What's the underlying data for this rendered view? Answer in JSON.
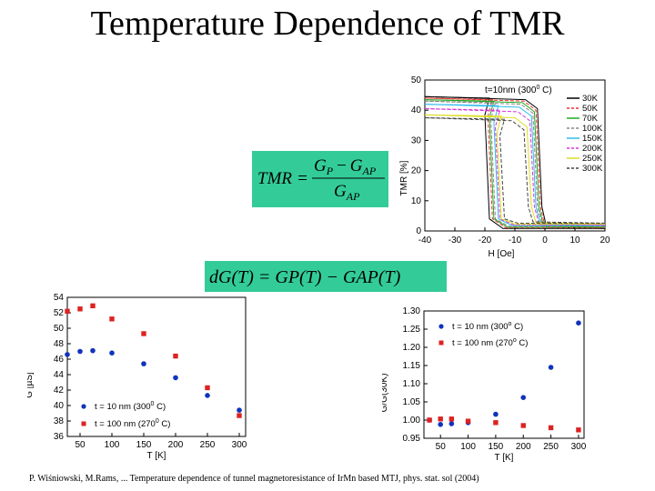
{
  "page_title": "Temperature Dependence of TMR",
  "equations": {
    "tmr": {
      "lhs": "TMR",
      "num_a": "G",
      "num_a_sub": "P",
      "minus": "−",
      "num_b": "G",
      "num_b_sub": "AP",
      "den": "G",
      "den_sub": "AP"
    },
    "dg": {
      "text": "dG(T) = GP(T) − GAP(T)"
    }
  },
  "footer_citation": "P. Wiśniowski, M.Rams, ... Temperature dependence of tunnel magnetoresistance of IrMn based MTJ, phys. stat. sol (2004)",
  "chart_data": [
    {
      "id": "hysteresis",
      "type": "line",
      "title": "t=10nm (300 C)",
      "title_prefix": "t=10nm (300",
      "title_sup": "0",
      "title_suffix": " C)",
      "xlabel": "H [Oe]",
      "ylabel": "TMR [%]",
      "xlim": [
        -40,
        20
      ],
      "ylim": [
        0,
        50
      ],
      "xticks": [
        -40,
        -30,
        -20,
        -10,
        0,
        10,
        20
      ],
      "yticks": [
        0,
        10,
        20,
        30,
        40,
        50
      ],
      "series": [
        {
          "name": "30K",
          "color": "#000000",
          "tmr": 44.5,
          "hc_down": -20.0,
          "hc_up": -0.5
        },
        {
          "name": "50K",
          "color": "#ee3333",
          "tmr": 44.0,
          "hc_down": -19.0,
          "hc_up": -1.0
        },
        {
          "name": "70K",
          "color": "#22aa22",
          "tmr": 43.5,
          "hc_down": -18.5,
          "hc_up": -1.5
        },
        {
          "name": "100K",
          "color": "#888888",
          "tmr": 43.0,
          "hc_down": -18.0,
          "hc_up": -2.0
        },
        {
          "name": "150K",
          "color": "#33bbee",
          "tmr": 42.0,
          "hc_down": -17.0,
          "hc_up": -2.5
        },
        {
          "name": "200K",
          "color": "#dd33dd",
          "tmr": 40.5,
          "hc_down": -16.5,
          "hc_up": -3.0
        },
        {
          "name": "250K",
          "color": "#dddd22",
          "tmr": 38.5,
          "hc_down": -16.0,
          "hc_up": -4.0
        },
        {
          "name": "300K",
          "color": "#444444",
          "tmr": 37.5,
          "hc_down": -15.0,
          "hc_up": -5.0
        }
      ]
    },
    {
      "id": "gp_vs_t",
      "type": "scatter",
      "xlabel": "T [K]",
      "ylabel": "G [µS]",
      "xlim": [
        30,
        310
      ],
      "ylim": [
        36,
        54
      ],
      "xticks": [
        50,
        100,
        150,
        200,
        250,
        300
      ],
      "yticks": [
        36,
        38,
        40,
        42,
        44,
        46,
        48,
        50,
        52,
        54
      ],
      "series": [
        {
          "name": "t =   10 nm (300 C)",
          "label_prefix": "t =   10 nm (300",
          "label_sup": "0",
          "label_suffix": " C)",
          "marker": "circle",
          "color": "#1133bb",
          "x": [
            30,
            50,
            70,
            100,
            150,
            200,
            250,
            300
          ],
          "y": [
            46.6,
            47.0,
            47.1,
            46.8,
            45.4,
            43.6,
            41.3,
            39.4
          ]
        },
        {
          "name": "t = 100 nm (270 C)",
          "label_prefix": "t = 100 nm (270",
          "label_sup": "0",
          "label_suffix": " C)",
          "marker": "square",
          "color": "#dd2222",
          "x": [
            30,
            50,
            70,
            100,
            150,
            200,
            250,
            300
          ],
          "y": [
            52.2,
            52.5,
            52.9,
            51.2,
            49.3,
            46.4,
            42.3,
            38.7
          ]
        }
      ]
    },
    {
      "id": "normalized_vs_t",
      "type": "scatter",
      "xlabel": "T [K]",
      "ylabel": "G/G(30K)",
      "xlim": [
        20,
        310
      ],
      "ylim": [
        0.95,
        1.3
      ],
      "xticks": [
        50,
        100,
        150,
        200,
        250,
        300
      ],
      "yticks": [
        0.95,
        1.0,
        1.05,
        1.1,
        1.15,
        1.2,
        1.25,
        1.3
      ],
      "ytick_labels": [
        "0.95",
        "1.00",
        "1.05",
        "1.10",
        "1.15",
        "1.20",
        "1.25",
        "1.30"
      ],
      "series": [
        {
          "name": "t =   10 nm (300° C)",
          "label_prefix": "t =   10 nm (300",
          "label_sup": "o",
          "label_suffix": " C)",
          "marker": "circle",
          "color": "#1133bb",
          "x": [
            30,
            50,
            70,
            100,
            150,
            200,
            250,
            300
          ],
          "y": [
            1.0,
            0.988,
            0.99,
            0.993,
            1.016,
            1.062,
            1.145,
            1.267
          ]
        },
        {
          "name": "t = 100 nm (270° C)",
          "label_prefix": "t = 100 nm (270",
          "label_sup": "o",
          "label_suffix": " C)",
          "marker": "square",
          "color": "#dd2222",
          "x": [
            30,
            50,
            70,
            100,
            150,
            200,
            250,
            300
          ],
          "y": [
            1.0,
            1.003,
            1.003,
            0.997,
            0.993,
            0.985,
            0.979,
            0.973
          ]
        }
      ]
    }
  ]
}
